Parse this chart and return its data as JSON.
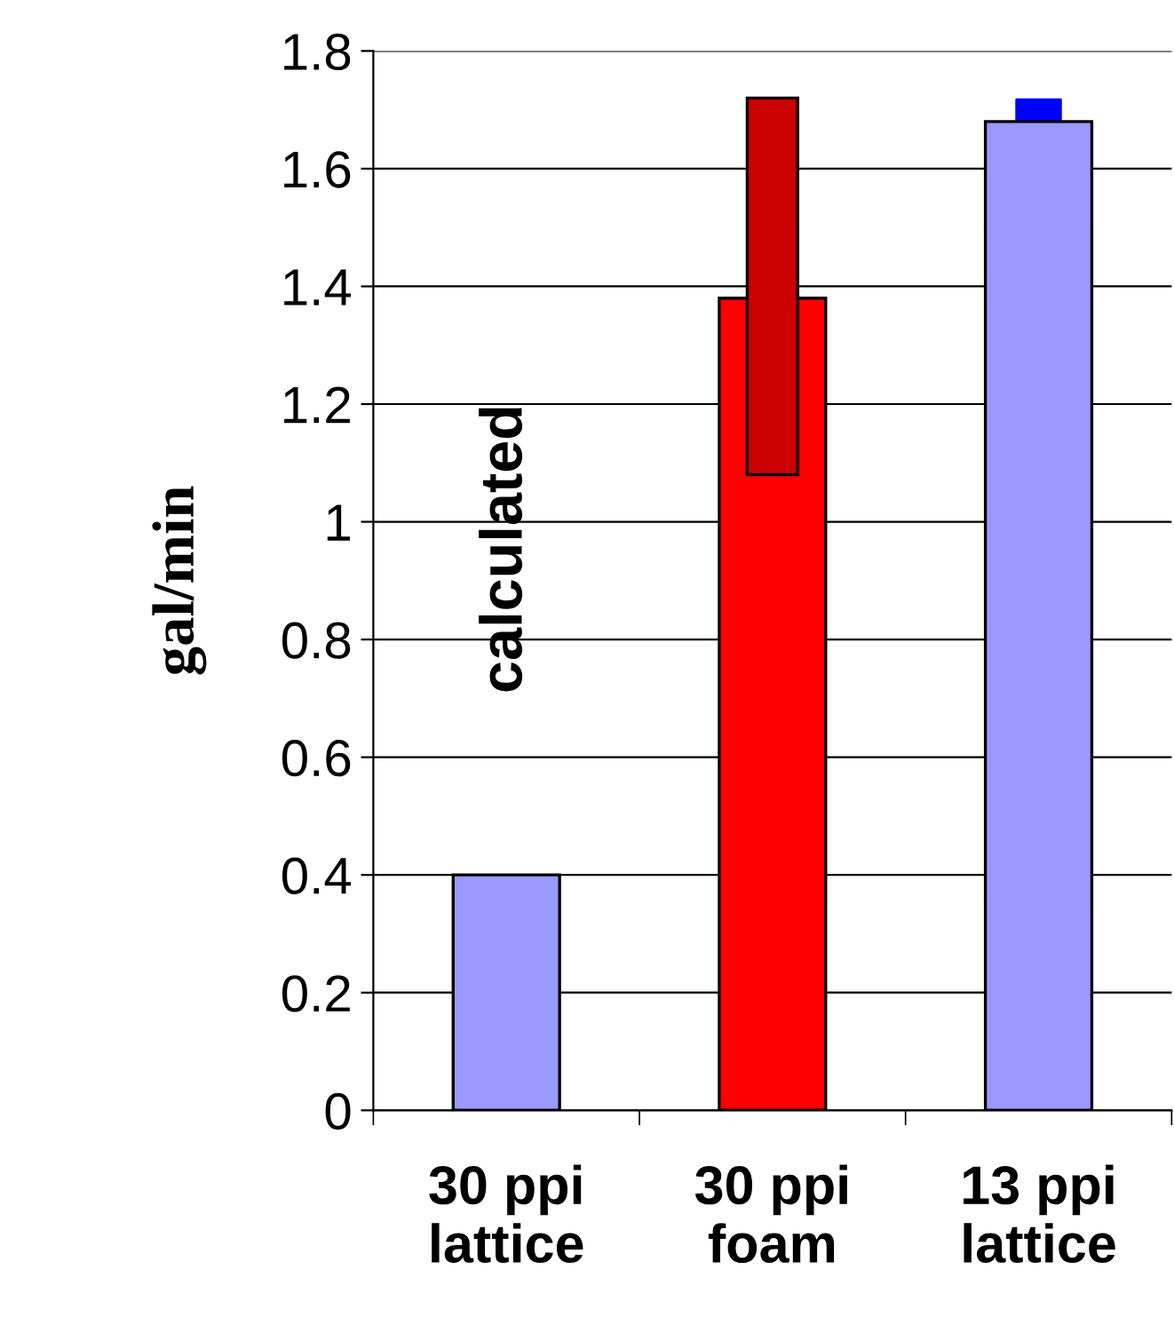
{
  "chart_data": {
    "type": "bar",
    "ylabel": "gal/min",
    "categories": [
      "30 ppi\nlattice",
      "30 ppi\nfoam",
      "13 ppi\nlattice"
    ],
    "series": [
      {
        "colors": [
          "#9999ff",
          "#ff0000",
          "#9999ff"
        ],
        "values": [
          0.4,
          1.38,
          1.68
        ]
      },
      {
        "color": "#cc0000",
        "values": [
          null,
          0.64,
          null
        ],
        "base": [
          null,
          1.08,
          null
        ]
      },
      {
        "type": "scatter",
        "color": "#0000ff",
        "marker": "square",
        "values": [
          null,
          null,
          1.68
        ]
      }
    ],
    "annotations": [
      "calculated"
    ],
    "ylim": [
      0,
      1.8
    ],
    "yticks": [
      0,
      0.2,
      0.4,
      0.6,
      0.8,
      1,
      1.2,
      1.4,
      1.6,
      1.8
    ],
    "grid": "y",
    "legend": false
  }
}
